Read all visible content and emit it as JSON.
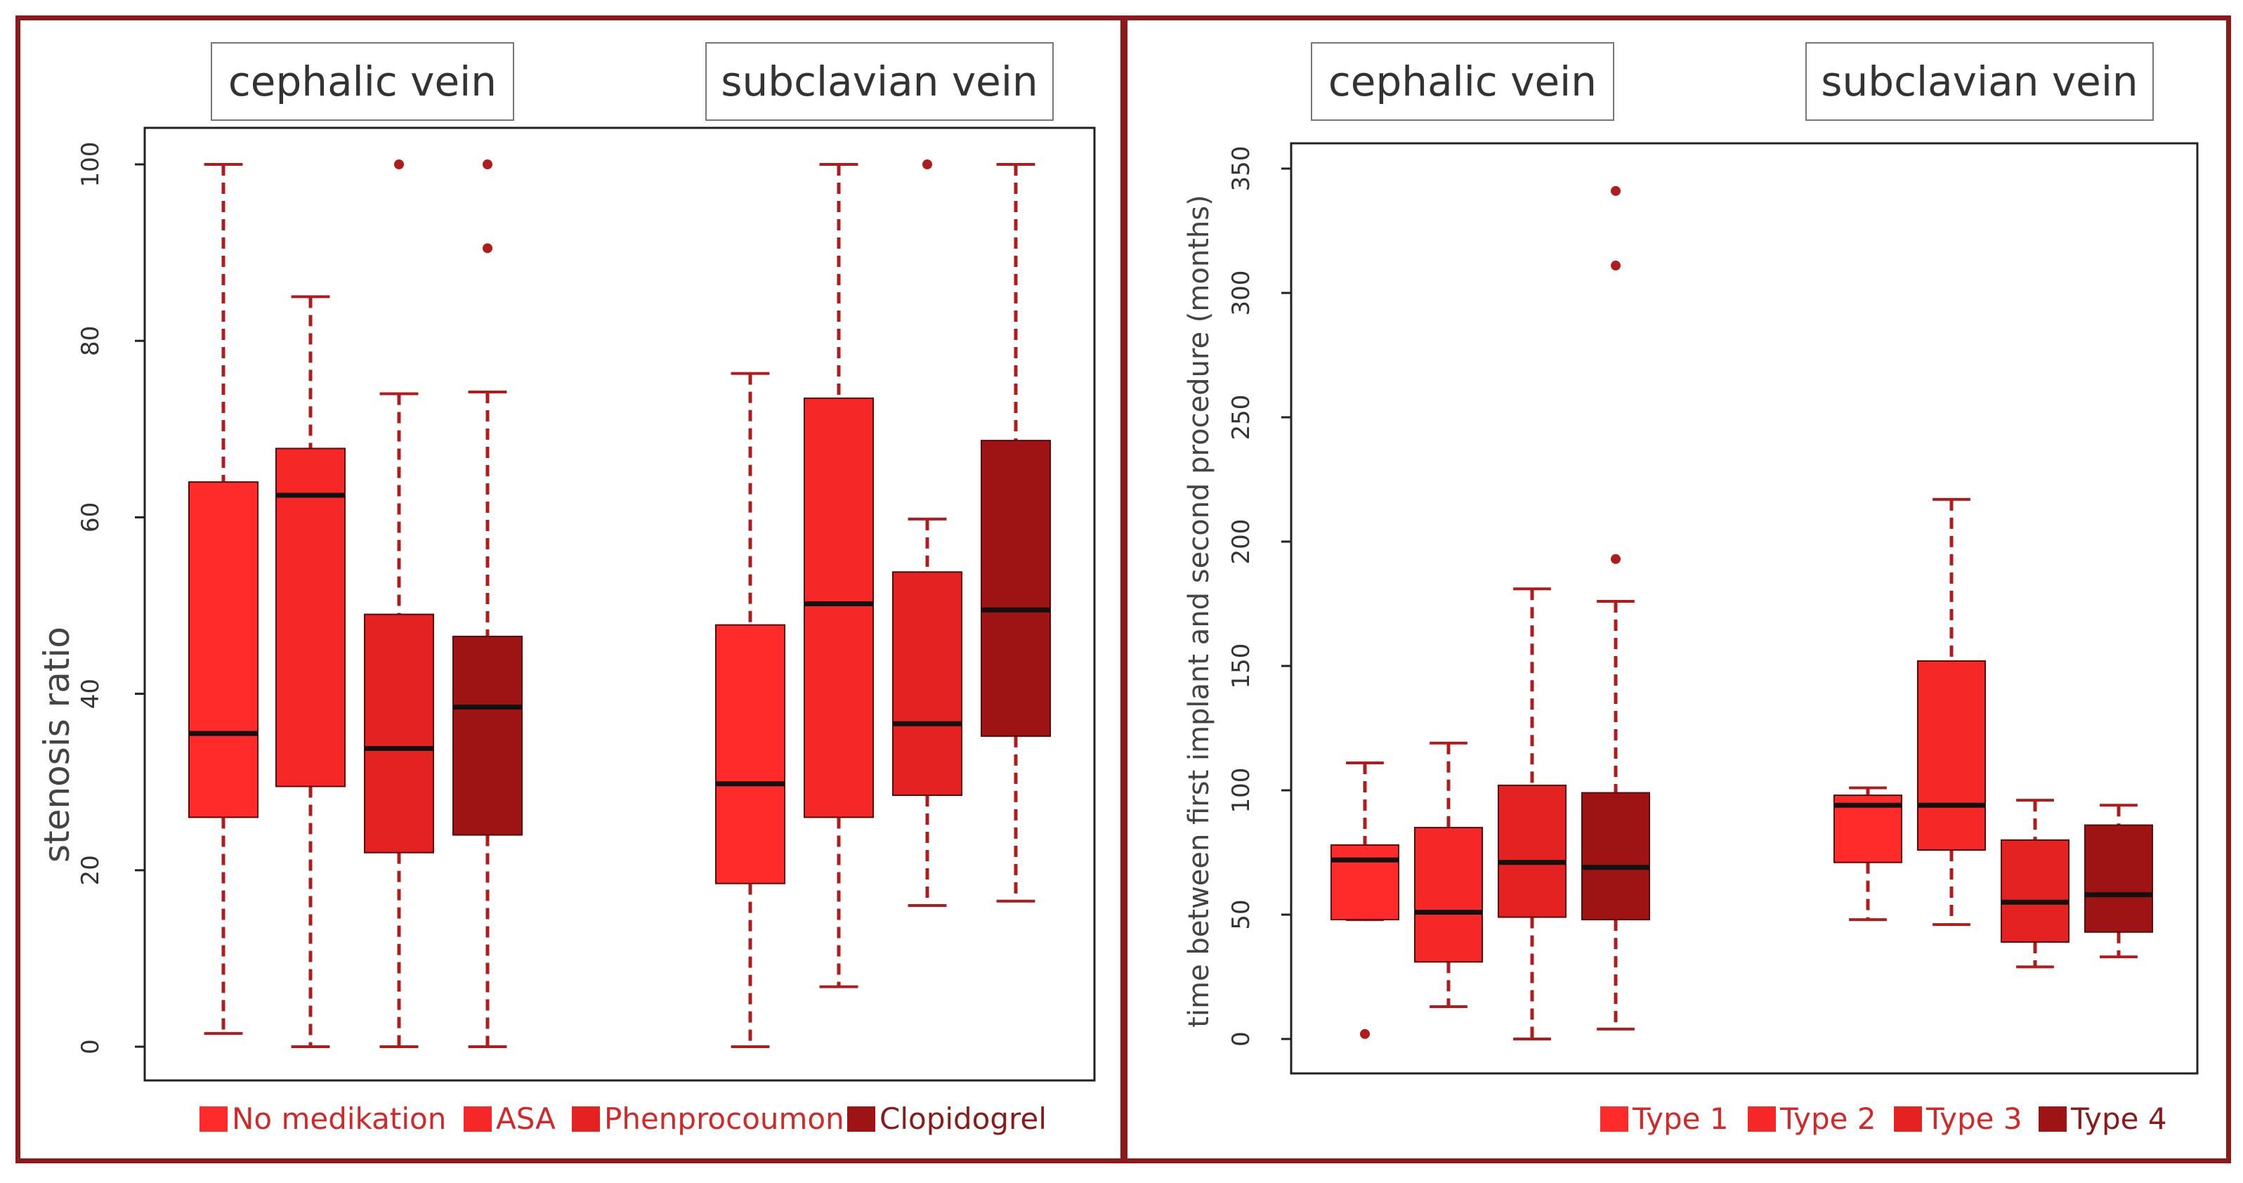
{
  "colors": {
    "type1": "#ff2a2a",
    "type2": "#f52727",
    "type3": "#e52222",
    "type4": "#9e1414",
    "whisker": "#b01c1c",
    "border": "#8b1a1a",
    "legend_text": "#d42828"
  },
  "left": {
    "labels": {
      "cephalic": "cephalic vein",
      "subclavian": "subclavian vein"
    },
    "legend": [
      "No medikation",
      "ASA",
      "Phenprocoumon",
      "Clopidogrel"
    ]
  },
  "right": {
    "labels": {
      "cephalic": "cephalic vein",
      "subclavian": "subclavian vein"
    },
    "legend": [
      "Type 1",
      "Type 2",
      "Type 3",
      "Type 4"
    ]
  },
  "chart_data": [
    {
      "type": "boxplot",
      "ylabel": "stenosis ratio",
      "ylim": [
        0,
        100
      ],
      "yticks": [
        0,
        20,
        40,
        60,
        80,
        100
      ],
      "groups": [
        "cephalic vein",
        "subclavian vein"
      ],
      "series": [
        {
          "name": "No medikation",
          "color_key": "type1"
        },
        {
          "name": "ASA",
          "color_key": "type2"
        },
        {
          "name": "Phenprocoumon",
          "color_key": "type3"
        },
        {
          "name": "Clopidogrel",
          "color_key": "type4"
        }
      ],
      "boxes": [
        {
          "group": "cephalic vein",
          "series": "No medikation",
          "min": 1.5,
          "q1": 26,
          "median": 35.5,
          "q3": 64,
          "max": 100,
          "outliers": []
        },
        {
          "group": "cephalic vein",
          "series": "ASA",
          "min": 0,
          "q1": 29.5,
          "median": 62.5,
          "q3": 67.8,
          "max": 85,
          "outliers": []
        },
        {
          "group": "cephalic vein",
          "series": "Phenprocoumon",
          "min": 0,
          "q1": 22,
          "median": 33.8,
          "q3": 49,
          "max": 74,
          "outliers": [
            100
          ]
        },
        {
          "group": "cephalic vein",
          "series": "Clopidogrel",
          "min": 0,
          "q1": 24,
          "median": 38.5,
          "q3": 46.5,
          "max": 74.2,
          "outliers": [
            100,
            90.5
          ]
        },
        {
          "group": "subclavian vein",
          "series": "No medikation",
          "min": 0,
          "q1": 18.5,
          "median": 29.8,
          "q3": 47.8,
          "max": 76.3,
          "outliers": []
        },
        {
          "group": "subclavian vein",
          "series": "ASA",
          "min": 6.8,
          "q1": 26,
          "median": 50.2,
          "q3": 73.5,
          "max": 100,
          "outliers": []
        },
        {
          "group": "subclavian vein",
          "series": "Phenprocoumon",
          "min": 16,
          "q1": 28.5,
          "median": 36.6,
          "q3": 53.8,
          "max": 59.8,
          "outliers": [
            100
          ]
        },
        {
          "group": "subclavian vein",
          "series": "Clopidogrel",
          "min": 16.5,
          "q1": 35.2,
          "median": 49.5,
          "q3": 68.7,
          "max": 100,
          "outliers": []
        }
      ]
    },
    {
      "type": "boxplot",
      "ylabel": "time between first implant and second procedure (months)",
      "ylim": [
        0,
        350
      ],
      "yticks": [
        0,
        50,
        100,
        150,
        200,
        250,
        300,
        350
      ],
      "groups": [
        "cephalic vein",
        "subclavian vein"
      ],
      "series": [
        {
          "name": "Type 1",
          "color_key": "type1"
        },
        {
          "name": "Type 2",
          "color_key": "type2"
        },
        {
          "name": "Type 3",
          "color_key": "type3"
        },
        {
          "name": "Type 4",
          "color_key": "type4"
        }
      ],
      "boxes": [
        {
          "group": "cephalic vein",
          "series": "Type 1",
          "min": 48,
          "q1": 48,
          "median": 72,
          "q3": 78,
          "max": 111,
          "outliers": [
            2
          ]
        },
        {
          "group": "cephalic vein",
          "series": "Type 2",
          "min": 13,
          "q1": 31,
          "median": 51,
          "q3": 85,
          "max": 119,
          "outliers": []
        },
        {
          "group": "cephalic vein",
          "series": "Type 3",
          "min": 0,
          "q1": 49,
          "median": 71,
          "q3": 102,
          "max": 181,
          "outliers": []
        },
        {
          "group": "cephalic vein",
          "series": "Type 4",
          "min": 4,
          "q1": 48,
          "median": 69,
          "q3": 99,
          "max": 176,
          "outliers": [
            193,
            311,
            341
          ]
        },
        {
          "group": "subclavian vein",
          "series": "Type 1",
          "min": 48,
          "q1": 71,
          "median": 94,
          "q3": 98,
          "max": 101,
          "outliers": []
        },
        {
          "group": "subclavian vein",
          "series": "Type 2",
          "min": 46,
          "q1": 76,
          "median": 94,
          "q3": 152,
          "max": 217,
          "outliers": []
        },
        {
          "group": "subclavian vein",
          "series": "Type 3",
          "min": 29,
          "q1": 39,
          "median": 55,
          "q3": 80,
          "max": 96,
          "outliers": []
        },
        {
          "group": "subclavian vein",
          "series": "Type 4",
          "min": 33,
          "q1": 43,
          "median": 58,
          "q3": 86,
          "max": 94,
          "outliers": []
        }
      ]
    }
  ]
}
